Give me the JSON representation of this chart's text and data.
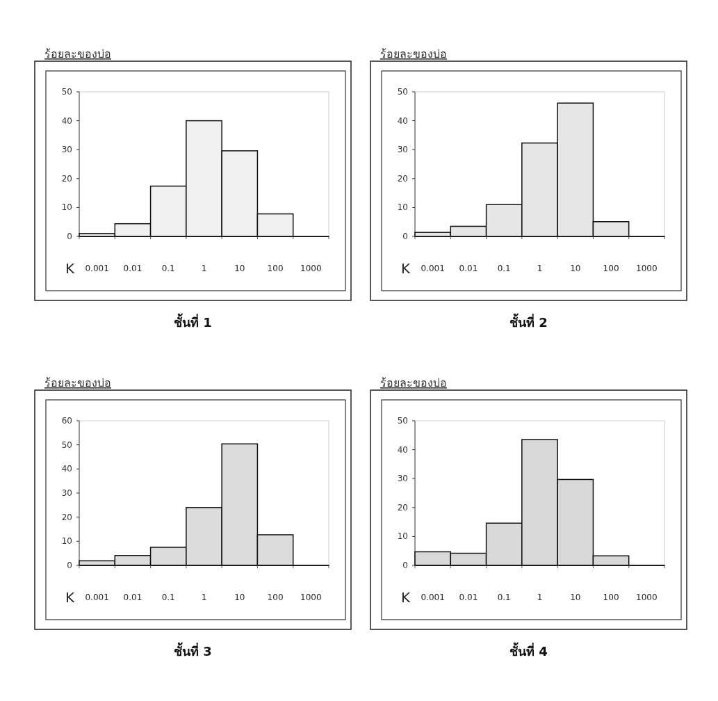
{
  "chart_data": [
    {
      "type": "bar",
      "title": "ชั้นที่ 1",
      "ylabel": "ร้อยละของบ่อ",
      "xlabel": "K",
      "categories": [
        "0.001",
        "0.01",
        "0.1",
        "1",
        "10",
        "100",
        "1000"
      ],
      "values": [
        1,
        4.4,
        17.4,
        40,
        29.6,
        7.8,
        0
      ],
      "color": "#f0f0f0",
      "ylim": [
        0,
        50
      ],
      "yticks": [
        0,
        10,
        20,
        30,
        40,
        50
      ]
    },
    {
      "type": "bar",
      "title": "ชั้นที่ 2",
      "ylabel": "ร้อยละของบ่อ",
      "xlabel": "K",
      "categories": [
        "0.001",
        "0.01",
        "0.1",
        "1",
        "10",
        "100",
        "1000"
      ],
      "values": [
        1.4,
        3.5,
        11,
        32.3,
        46.1,
        5.1,
        0
      ],
      "color": "#e6e6e6",
      "ylim": [
        0,
        50
      ],
      "yticks": [
        0,
        10,
        20,
        30,
        40,
        50
      ]
    },
    {
      "type": "bar",
      "title": "ชั้นที่ 3",
      "ylabel": "ร้อยละของบ่อ",
      "xlabel": "K",
      "categories": [
        "0.001",
        "0.01",
        "0.1",
        "1",
        "10",
        "100",
        "1000"
      ],
      "values": [
        1.9,
        4.1,
        7.5,
        24,
        50.4,
        12.7,
        0
      ],
      "color": "#dcdcdc",
      "ylim": [
        0,
        60
      ],
      "yticks": [
        0,
        10,
        20,
        30,
        40,
        50,
        60
      ]
    },
    {
      "type": "bar",
      "title": "ชั้นที่ 4",
      "ylabel": "ร้อยละของบ่อ",
      "xlabel": "K",
      "categories": [
        "0.001",
        "0.01",
        "0.1",
        "1",
        "10",
        "100",
        "1000"
      ],
      "values": [
        4.7,
        4.2,
        14.6,
        43.5,
        29.7,
        3.3,
        0
      ],
      "color": "#d8d8d8",
      "ylim": [
        0,
        50
      ],
      "yticks": [
        0,
        10,
        20,
        30,
        40,
        50
      ]
    }
  ]
}
